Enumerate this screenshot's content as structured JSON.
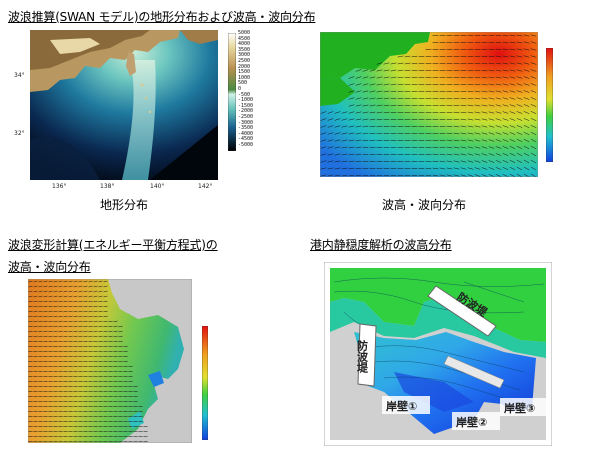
{
  "headings": {
    "swan": "波浪推算(SWAN モデル)の地形分布および波高・波向分布",
    "energy_line1": "波浪変形計算(エネルギー平衡方程式)の",
    "energy_line2": "波高・波向分布",
    "harbor": "港内静穏度解析の波高分布"
  },
  "captions": {
    "topo": "地形分布",
    "wave": "波高・波向分布"
  },
  "topo_map": {
    "lat_ticks": [
      "34°",
      "32°"
    ],
    "lon_ticks": [
      "136°",
      "138°",
      "140°",
      "142°"
    ],
    "colorbar_labels": [
      "5000",
      "4500",
      "4000",
      "3500",
      "3000",
      "2500",
      "2000",
      "1500",
      "1000",
      "500",
      "0",
      "-500",
      "-1000",
      "-1500",
      "-2000",
      "-2500",
      "-3000",
      "-3500",
      "-4000",
      "-4500",
      "-5000"
    ]
  },
  "harbor_map": {
    "labels": {
      "breakwater_top": "防波堤",
      "breakwater_left": "防波堤",
      "quay1": "岸壁①",
      "quay2": "岸壁②",
      "quay3": "岸壁③"
    }
  },
  "colors": {
    "heading_text": "#000000",
    "land_gray": "#c8c8c8",
    "ocean_deep": "#000814",
    "ocean_shallow": "#a8e8d8"
  }
}
